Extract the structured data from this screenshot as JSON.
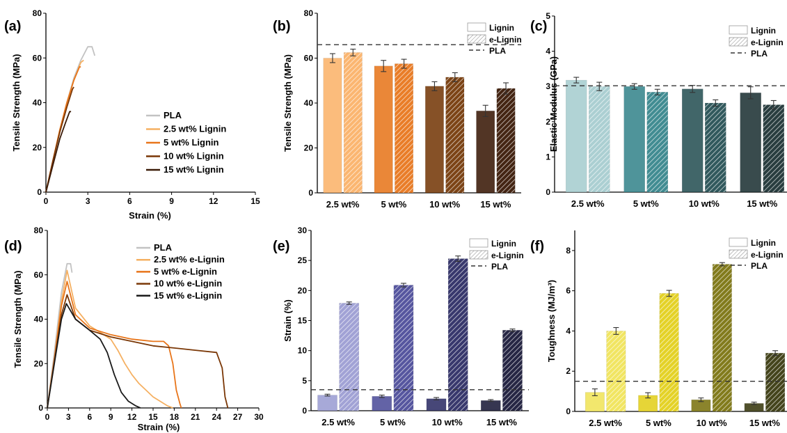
{
  "chart_data": [
    {
      "panel": "(a)",
      "type": "line",
      "xlabel": "Strain (%)",
      "ylabel": "Tensile Strength (MPa)",
      "xlim": [
        0,
        15
      ],
      "ylim": [
        0,
        80
      ],
      "xticks": [
        "0",
        "3",
        "6",
        "9",
        "12",
        "15"
      ],
      "yticks": [
        "0",
        "20",
        "40",
        "60",
        "80"
      ],
      "legend_position": "bottom-right",
      "series": [
        {
          "name": "PLA",
          "color": "#c2c2c2",
          "x": [
            0,
            0.5,
            1.0,
            1.5,
            2.0,
            2.5,
            3.0,
            3.3,
            3.5
          ],
          "y": [
            0,
            14,
            28,
            40,
            51,
            59,
            65,
            65,
            61
          ]
        },
        {
          "name": "2.5 wt% Lignin",
          "color": "#f5b062",
          "x": [
            0,
            0.5,
            1.0,
            1.5,
            2.0,
            2.5,
            2.7
          ],
          "y": [
            0,
            14,
            28,
            40,
            50,
            58,
            59
          ]
        },
        {
          "name": "5 wt% Lignin",
          "color": "#e8751a",
          "x": [
            0,
            0.5,
            1.0,
            1.5,
            2.0,
            2.4,
            2.5
          ],
          "y": [
            0,
            14,
            28,
            40,
            50,
            56,
            56
          ]
        },
        {
          "name": "10 wt% Lignin",
          "color": "#7a3706",
          "x": [
            0,
            0.5,
            1.0,
            1.5,
            1.9,
            2.0
          ],
          "y": [
            0,
            14,
            27,
            38,
            46,
            47
          ]
        },
        {
          "name": "15 wt% Lignin",
          "color": "#3a1a07",
          "x": [
            0,
            0.5,
            1.0,
            1.4,
            1.7,
            1.8
          ],
          "y": [
            0,
            12,
            24,
            31,
            36,
            36
          ]
        }
      ]
    },
    {
      "panel": "(b)",
      "type": "bar",
      "ylabel": "Tensile Strength (MPa)",
      "ylim": [
        0,
        80
      ],
      "yticks": [
        "0",
        "20",
        "40",
        "60",
        "80"
      ],
      "categories": [
        "2.5 wt%",
        "5 wt%",
        "10 wt%",
        "15 wt%"
      ],
      "category_colors": [
        "#fbb36a",
        "#e8771d",
        "#763a0a",
        "#3b1a07"
      ],
      "reference_line": {
        "label": "PLA",
        "value": 66
      },
      "legend": [
        "Lignin",
        "e-Lignin",
        "PLA"
      ],
      "legend_position": "top-right",
      "series": [
        {
          "name": "Lignin",
          "values": [
            60,
            56.5,
            47.5,
            36.5
          ],
          "errors": [
            2,
            2.5,
            2,
            2.5
          ]
        },
        {
          "name": "e-Lignin",
          "values": [
            62.5,
            57.5,
            51.5,
            46.5
          ],
          "errors": [
            1.5,
            2,
            2,
            2.5
          ]
        }
      ]
    },
    {
      "panel": "(c)",
      "type": "bar",
      "ylabel": "Elastic Modulus (GPa)",
      "ylim": [
        0,
        5
      ],
      "yticks": [
        "0",
        "1",
        "2",
        "3",
        "4",
        "5"
      ],
      "categories": [
        "2.5 wt%",
        "5 wt%",
        "10 wt%",
        "15 wt%"
      ],
      "category_colors": [
        "#a7cdd0",
        "#37868d",
        "#275155",
        "#1e3335"
      ],
      "reference_line": {
        "label": "PLA",
        "value": 3.02
      },
      "legend": [
        "Lignin",
        "e-Lignin",
        "PLA"
      ],
      "legend_position": "top-right",
      "series": [
        {
          "name": "Lignin",
          "values": [
            3.18,
            3.0,
            2.93,
            2.82
          ],
          "errors": [
            0.08,
            0.08,
            0.1,
            0.17
          ]
        },
        {
          "name": "e-Lignin",
          "values": [
            3.0,
            2.84,
            2.53,
            2.48
          ],
          "errors": [
            0.12,
            0.08,
            0.09,
            0.12
          ]
        }
      ]
    },
    {
      "panel": "(d)",
      "type": "line",
      "xlabel": "Strain (%)",
      "ylabel": "Tensile Strength (MPa)",
      "xlim": [
        0,
        30
      ],
      "ylim": [
        0,
        80
      ],
      "xticks": [
        "0",
        "3",
        "6",
        "9",
        "12",
        "15",
        "18",
        "21",
        "24",
        "27",
        "30"
      ],
      "yticks": [
        "0",
        "20",
        "40",
        "60",
        "80"
      ],
      "legend_position": "top-right",
      "series": [
        {
          "name": "PLA",
          "color": "#c2c2c2",
          "x": [
            0,
            1,
            2,
            2.8,
            3.3,
            3.5
          ],
          "y": [
            0,
            25,
            52,
            65,
            65,
            61
          ]
        },
        {
          "name": "2.5 wt% e-Lignin",
          "color": "#f5b062",
          "x": [
            0,
            1,
            2,
            2.8,
            4,
            6,
            8,
            9,
            10,
            11,
            12,
            13,
            14,
            15,
            16,
            17,
            17.8
          ],
          "y": [
            0,
            22,
            48,
            62,
            45,
            37,
            33,
            31,
            26,
            20,
            15,
            11,
            8,
            5,
            3,
            1,
            0
          ]
        },
        {
          "name": "5 wt% e-Lignin",
          "color": "#e8751a",
          "x": [
            0,
            1,
            2,
            2.8,
            4,
            6,
            9,
            12,
            15,
            16.5,
            17.2,
            17.8,
            18.3,
            18.8,
            19
          ],
          "y": [
            0,
            22,
            46,
            57,
            42,
            36,
            33,
            31,
            30,
            30,
            28,
            20,
            8,
            2,
            0
          ]
        },
        {
          "name": "10 wt% e-Lignin",
          "color": "#7a3706",
          "x": [
            0,
            1,
            2,
            2.8,
            4,
            6,
            9,
            12,
            15,
            18,
            21,
            24,
            24.8,
            25.2,
            25.6
          ],
          "y": [
            0,
            21,
            42,
            51,
            40,
            35,
            32,
            30,
            28,
            27,
            26,
            25,
            18,
            5,
            0
          ]
        },
        {
          "name": "15 wt% e-Lignin",
          "color": "#1a1a1a",
          "x": [
            0,
            1,
            2,
            2.7,
            4,
            6,
            7.5,
            8.5,
            9.5,
            10.5,
            11.5,
            12.5,
            13.2
          ],
          "y": [
            0,
            20,
            40,
            47,
            40,
            35,
            31,
            25,
            15,
            7,
            3,
            1,
            0
          ]
        }
      ]
    },
    {
      "panel": "(e)",
      "type": "bar",
      "ylabel": "Strain (%)",
      "ylim": [
        0,
        30
      ],
      "yticks": [
        "0",
        "5",
        "10",
        "15",
        "20",
        "25",
        "30"
      ],
      "categories": [
        "2.5 wt%",
        "5 wt%",
        "10 wt%",
        "15 wt%"
      ],
      "category_colors": [
        "#9c9ed3",
        "#4e4e9a",
        "#2e2e66",
        "#1b1b3a"
      ],
      "reference_line": {
        "label": "PLA",
        "value": 3.5
      },
      "legend": [
        "Lignin",
        "e-Lignin",
        "PLA"
      ],
      "legend_position": "top-right",
      "series": [
        {
          "name": "Lignin",
          "values": [
            2.6,
            2.4,
            2.0,
            1.7
          ],
          "errors": [
            0.15,
            0.2,
            0.2,
            0.15
          ]
        },
        {
          "name": "e-Lignin",
          "values": [
            17.9,
            20.9,
            25.3,
            13.4
          ],
          "errors": [
            0.2,
            0.3,
            0.45,
            0.2
          ]
        }
      ]
    },
    {
      "panel": "(f)",
      "type": "bar",
      "ylabel": "Toughness (MJ/m³)",
      "ylim": [
        0,
        9
      ],
      "yticks": [
        "0",
        "2",
        "4",
        "6",
        "8"
      ],
      "categories": [
        "2.5 wt%",
        "5 wt%",
        "10 wt%",
        "15 wt%"
      ],
      "category_colors": [
        "#f1e45a",
        "#e3d01c",
        "#7c7410",
        "#3a3a10"
      ],
      "reference_line": {
        "label": "PLA",
        "value": 1.5
      },
      "legend": [
        "Lignin",
        "e-Lignin",
        "PLA"
      ],
      "legend_position": "top-right",
      "series": [
        {
          "name": "Lignin",
          "values": [
            0.95,
            0.8,
            0.58,
            0.4
          ],
          "errors": [
            0.17,
            0.13,
            0.09,
            0.06
          ]
        },
        {
          "name": "e-Lignin",
          "values": [
            4.0,
            5.87,
            7.32,
            2.9
          ],
          "errors": [
            0.17,
            0.15,
            0.08,
            0.12
          ]
        }
      ]
    }
  ]
}
